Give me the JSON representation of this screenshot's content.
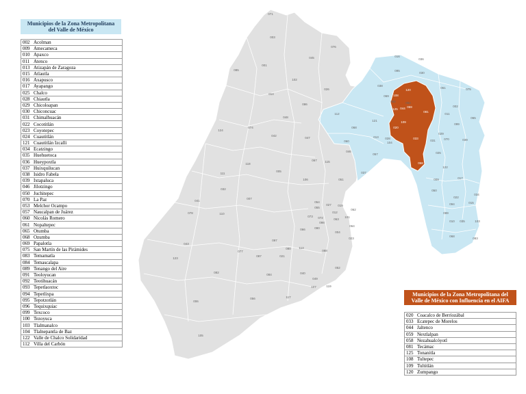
{
  "left_panel": {
    "title_line1": "Municipios de la Zona Metropolitana",
    "title_line2": "del Valle de México",
    "rows": [
      {
        "code": "002",
        "name": "Acolman"
      },
      {
        "code": "009",
        "name": "Amecameca"
      },
      {
        "code": "010",
        "name": "Apaxco"
      },
      {
        "code": "011",
        "name": "Atenco"
      },
      {
        "code": "013",
        "name": "Atizapán de Zaragoza"
      },
      {
        "code": "015",
        "name": "Atlautla"
      },
      {
        "code": "016",
        "name": "Axapusco"
      },
      {
        "code": "017",
        "name": "Ayapango"
      },
      {
        "code": "025",
        "name": "Chalco"
      },
      {
        "code": "028",
        "name": "Chiautla"
      },
      {
        "code": "029",
        "name": "Chicoloapan"
      },
      {
        "code": "030",
        "name": "Chiconcuac"
      },
      {
        "code": "031",
        "name": "Chimalhuacán"
      },
      {
        "code": "022",
        "name": "Cocotitlán"
      },
      {
        "code": "023",
        "name": "Coyotepec"
      },
      {
        "code": "024",
        "name": "Cuautitlán"
      },
      {
        "code": "121",
        "name": "Cuautitlán Izcalli"
      },
      {
        "code": "034",
        "name": "Ecatzingo"
      },
      {
        "code": "035",
        "name": "Huehuetoca"
      },
      {
        "code": "036",
        "name": "Hueypoxtla"
      },
      {
        "code": "037",
        "name": "Huixquilucan"
      },
      {
        "code": "038",
        "name": "Isidro Fabela"
      },
      {
        "code": "039",
        "name": "Ixtapaluca"
      },
      {
        "code": "046",
        "name": "Jilotzingo"
      },
      {
        "code": "050",
        "name": "Juchitepec"
      },
      {
        "code": "070",
        "name": "La Paz"
      },
      {
        "code": "053",
        "name": "Melchor Ocampo"
      },
      {
        "code": "057",
        "name": "Naucalpan de Juárez"
      },
      {
        "code": "060",
        "name": "Nicolás Romero"
      },
      {
        "code": "061",
        "name": "Nopaltepec"
      },
      {
        "code": "065",
        "name": "Otumba"
      },
      {
        "code": "068",
        "name": "Ozumba"
      },
      {
        "code": "069",
        "name": "Papalotla"
      },
      {
        "code": "075",
        "name": "San Martín de las Pirámides"
      },
      {
        "code": "083",
        "name": "Temamatla"
      },
      {
        "code": "084",
        "name": "Temascalapa"
      },
      {
        "code": "089",
        "name": "Tenango del Aire"
      },
      {
        "code": "091",
        "name": "Teoloyucan"
      },
      {
        "code": "092",
        "name": "Teotihuacán"
      },
      {
        "code": "093",
        "name": "Tepetlaoxtoc"
      },
      {
        "code": "094",
        "name": "Tepetlixpa"
      },
      {
        "code": "095",
        "name": "Tepotzotlán"
      },
      {
        "code": "096",
        "name": "Tequixquiac"
      },
      {
        "code": "099",
        "name": "Texcoco"
      },
      {
        "code": "100",
        "name": "Tezoyuca"
      },
      {
        "code": "103",
        "name": "Tlalmanalco"
      },
      {
        "code": "104",
        "name": "Tlalnepantla de Baz"
      },
      {
        "code": "122",
        "name": "Valle de Chalco Solidaridad"
      },
      {
        "code": "112",
        "name": "Villa del Carbón"
      }
    ]
  },
  "right_panel": {
    "title_line1": "Municipios de la Zona Metropolitana del",
    "title_line2": "Valle de México con Influencia en el AIFA",
    "rows": [
      {
        "code": "020",
        "name": "Coacalco de Berriozábal"
      },
      {
        "code": "033",
        "name": "Ecatepec de Morelos"
      },
      {
        "code": "044",
        "name": "Jaltenco"
      },
      {
        "code": "059",
        "name": "Nextlalpan"
      },
      {
        "code": "058",
        "name": "Nezahualcóyotl"
      },
      {
        "code": "081",
        "name": "Tecámac"
      },
      {
        "code": "125",
        "name": "Tonanitla"
      },
      {
        "code": "108",
        "name": "Tultepec"
      },
      {
        "code": "109",
        "name": "Tultitlán"
      },
      {
        "code": "120",
        "name": "Zumpango"
      }
    ]
  },
  "map": {
    "colors": {
      "state": "#e1e1e1",
      "zmvm": "#c9e7f3",
      "aifa": "#c0521a",
      "border": "#ffffff"
    },
    "grey_labels": [
      "071",
      "003",
      "076",
      "001",
      "045",
      "085",
      "102",
      "014",
      "026",
      "086",
      "074",
      "124",
      "048",
      "042",
      "047",
      "118",
      "111",
      "032",
      "007",
      "005",
      "067",
      "106",
      "115",
      "041",
      "078",
      "110",
      "054",
      "055",
      "027",
      "019",
      "073",
      "072",
      "098",
      "090",
      "066",
      "113",
      "080",
      "088",
      "012",
      "063",
      "101",
      "064",
      "004",
      "023",
      "097",
      "077",
      "087",
      "021",
      "082",
      "084",
      "040",
      "052",
      "049",
      "107",
      "119",
      "123",
      "043",
      "006",
      "117",
      "105",
      "056",
      "062",
      "051"
    ],
    "blue_labels": [
      "016",
      "036",
      "095",
      "038",
      "030",
      "069",
      "092",
      "084",
      "061",
      "075",
      "002",
      "011",
      "065",
      "099",
      "112",
      "068",
      "013",
      "028",
      "060",
      "121",
      "046",
      "057",
      "104",
      "037",
      "031",
      "029",
      "070",
      "039",
      "025",
      "122",
      "009",
      "017",
      "022",
      "050",
      "034",
      "015",
      "094",
      "089",
      "010",
      "035",
      "103",
      "083",
      "068"
    ],
    "orange_labels": [
      "120",
      "108",
      "125",
      "044",
      "059",
      "081",
      "109",
      "020",
      "033",
      "058"
    ]
  }
}
